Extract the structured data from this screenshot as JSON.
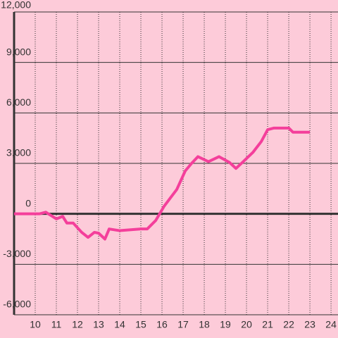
{
  "chart_data": {
    "type": "line",
    "x": [
      9,
      10.2,
      10.5,
      11,
      11.3,
      11.5,
      11.8,
      12.2,
      12.5,
      12.8,
      13,
      13.3,
      13.5,
      14,
      15,
      15.3,
      15.7,
      16.1,
      16.4,
      16.7,
      17.1,
      17.4,
      17.7,
      18.2,
      18.7,
      19.2,
      19.5,
      19.8,
      20.3,
      20.7,
      21,
      21.3,
      22,
      22.2,
      23
    ],
    "series": [
      {
        "color": "#f43f9b",
        "values": [
          0,
          0,
          100,
          -300,
          -150,
          -550,
          -550,
          -1100,
          -1400,
          -1100,
          -1150,
          -1500,
          -900,
          -1000,
          -900,
          -900,
          -400,
          450,
          950,
          1450,
          2550,
          3000,
          3400,
          3100,
          3400,
          3050,
          2700,
          3050,
          3650,
          4300,
          5000,
          5100,
          5100,
          4850,
          4850
        ]
      }
    ],
    "xlim": [
      9,
      24.33
    ],
    "xticks": [
      10,
      11,
      12,
      13,
      14,
      15,
      16,
      17,
      18,
      19,
      20,
      21,
      22,
      23,
      24
    ],
    "ylim": [
      -6000,
      12000
    ],
    "yticks": [
      {
        "value": -6000,
        "label": "-6,000"
      },
      {
        "value": -3000,
        "label": "-3,000"
      },
      0,
      {
        "value": 3000,
        "label": "3,000"
      },
      {
        "value": 6000,
        "label": "6,000"
      },
      {
        "value": 9000,
        "label": "9,000"
      },
      {
        "value": 12000,
        "label": "12,000"
      }
    ],
    "grid": true
  }
}
